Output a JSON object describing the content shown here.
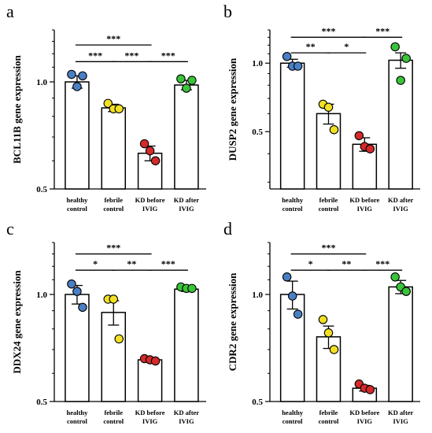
{
  "chart_data": [
    {
      "type": "bar",
      "panel_label": "a",
      "ylabel": "BCL11B gene expression",
      "y_scale": "log",
      "ylim": [
        0.5,
        1.4
      ],
      "yticks": [
        0.5,
        1.0
      ],
      "ytick_labels": [
        "0.5",
        "1.0"
      ],
      "categories": [
        {
          "line1": "healthy",
          "line2": "control"
        },
        {
          "line1": "febrile",
          "line2": "control"
        },
        {
          "line1": "KD before",
          "line2": "IVIG"
        },
        {
          "line1": "KD after",
          "line2": "IVIG"
        }
      ],
      "values": [
        1.0,
        0.845,
        0.63,
        0.98
      ],
      "errors": [
        0.04,
        0.02,
        0.03,
        0.03
      ],
      "points": [
        [
          1.05,
          0.97,
          1.04
        ],
        [
          0.87,
          0.84,
          0.84
        ],
        [
          0.67,
          0.64,
          0.6
        ],
        [
          1.02,
          0.96,
          1.01
        ]
      ],
      "point_colors": [
        "#4a7fc4",
        "#f2e024",
        "#d42a2a",
        "#3ac43a"
      ],
      "significance": [
        {
          "from": 0,
          "to": 2,
          "label": "***",
          "y": 1.27
        },
        {
          "from": 0,
          "to": 1,
          "label": "***",
          "y": 1.14
        },
        {
          "from": 1,
          "to": 2,
          "label": "***",
          "y": 1.14
        },
        {
          "from": 2,
          "to": 3,
          "label": "***",
          "y": 1.14
        }
      ]
    },
    {
      "type": "bar",
      "panel_label": "b",
      "ylabel": "DUSP2 gene expression",
      "y_scale": "log",
      "ylim": [
        0.28,
        1.4
      ],
      "yticks": [
        0.5,
        1.0
      ],
      "ytick_labels": [
        "0.5",
        "1.0"
      ],
      "categories": [
        {
          "line1": "healthy",
          "line2": "control"
        },
        {
          "line1": "febrile",
          "line2": "control"
        },
        {
          "line1": "KD before",
          "line2": "IVIG"
        },
        {
          "line1": "KD after",
          "line2": "IVIG"
        }
      ],
      "values": [
        1.0,
        0.6,
        0.44,
        1.03
      ],
      "errors": [
        0.04,
        0.06,
        0.03,
        0.08
      ],
      "points": [
        [
          1.07,
          0.97,
          0.97
        ],
        [
          0.66,
          0.64,
          0.51
        ],
        [
          0.48,
          0.43,
          0.42
        ],
        [
          1.18,
          0.84,
          1.05
        ]
      ],
      "point_colors": [
        "#4a7fc4",
        "#f2e024",
        "#d42a2a",
        "#3ac43a"
      ],
      "significance": [
        {
          "from": 0,
          "to": 2,
          "label": "***",
          "y": 1.3
        },
        {
          "from": 2,
          "to": 3,
          "label": "***",
          "y": 1.3
        },
        {
          "from": 0,
          "to": 1,
          "label": "**",
          "y": 1.11
        },
        {
          "from": 1,
          "to": 2,
          "label": "*",
          "y": 1.11
        }
      ]
    },
    {
      "type": "bar",
      "panel_label": "c",
      "ylabel": "DDX24 gene expression",
      "y_scale": "log",
      "ylim": [
        0.5,
        1.4
      ],
      "yticks": [
        0.5,
        1.0
      ],
      "ytick_labels": [
        "0.5",
        "1.0"
      ],
      "categories": [
        {
          "line1": "healthy",
          "line2": "control"
        },
        {
          "line1": "febrile",
          "line2": "control"
        },
        {
          "line1": "KD before",
          "line2": "IVIG"
        },
        {
          "line1": "KD after",
          "line2": "IVIG"
        }
      ],
      "values": [
        1.0,
        0.89,
        0.655,
        1.035
      ],
      "errors": [
        0.06,
        0.07,
        0.005,
        0.015
      ],
      "points": [
        [
          1.07,
          1.02,
          0.92
        ],
        [
          0.97,
          0.97,
          0.75
        ],
        [
          0.66,
          0.655,
          0.65
        ],
        [
          1.05,
          1.04,
          1.04
        ]
      ],
      "point_colors": [
        "#4a7fc4",
        "#f2e024",
        "#d42a2a",
        "#3ac43a"
      ],
      "significance": [
        {
          "from": 0,
          "to": 2,
          "label": "***",
          "y": 1.3
        },
        {
          "from": 0,
          "to": 1,
          "label": "*",
          "y": 1.17
        },
        {
          "from": 1,
          "to": 2,
          "label": "**",
          "y": 1.17
        },
        {
          "from": 2,
          "to": 3,
          "label": "***",
          "y": 1.17
        }
      ]
    },
    {
      "type": "bar",
      "panel_label": "d",
      "ylabel": "CDR2 gene expression",
      "y_scale": "log",
      "ylim": [
        0.5,
        1.4
      ],
      "yticks": [
        0.5,
        1.0
      ],
      "ytick_labels": [
        "0.5",
        "1.0"
      ],
      "categories": [
        {
          "line1": "healthy",
          "line2": "control"
        },
        {
          "line1": "febrile",
          "line2": "control"
        },
        {
          "line1": "KD before",
          "line2": "IVIG"
        },
        {
          "line1": "KD after",
          "line2": "IVIG"
        }
      ],
      "values": [
        1.0,
        0.76,
        0.545,
        1.05
      ],
      "errors": [
        0.09,
        0.055,
        0.01,
        0.045
      ],
      "points": [
        [
          1.12,
          0.99,
          0.88
        ],
        [
          0.85,
          0.78,
          0.7
        ],
        [
          0.56,
          0.545,
          0.54
        ],
        [
          1.12,
          1.05,
          1.02
        ]
      ],
      "point_colors": [
        "#4a7fc4",
        "#f2e024",
        "#d42a2a",
        "#3ac43a"
      ],
      "significance": [
        {
          "from": 0,
          "to": 2,
          "label": "***",
          "y": 1.3
        },
        {
          "from": 0,
          "to": 1,
          "label": "*",
          "y": 1.17
        },
        {
          "from": 1,
          "to": 2,
          "label": "**",
          "y": 1.17
        },
        {
          "from": 2,
          "to": 3,
          "label": "***",
          "y": 1.17
        }
      ]
    }
  ]
}
